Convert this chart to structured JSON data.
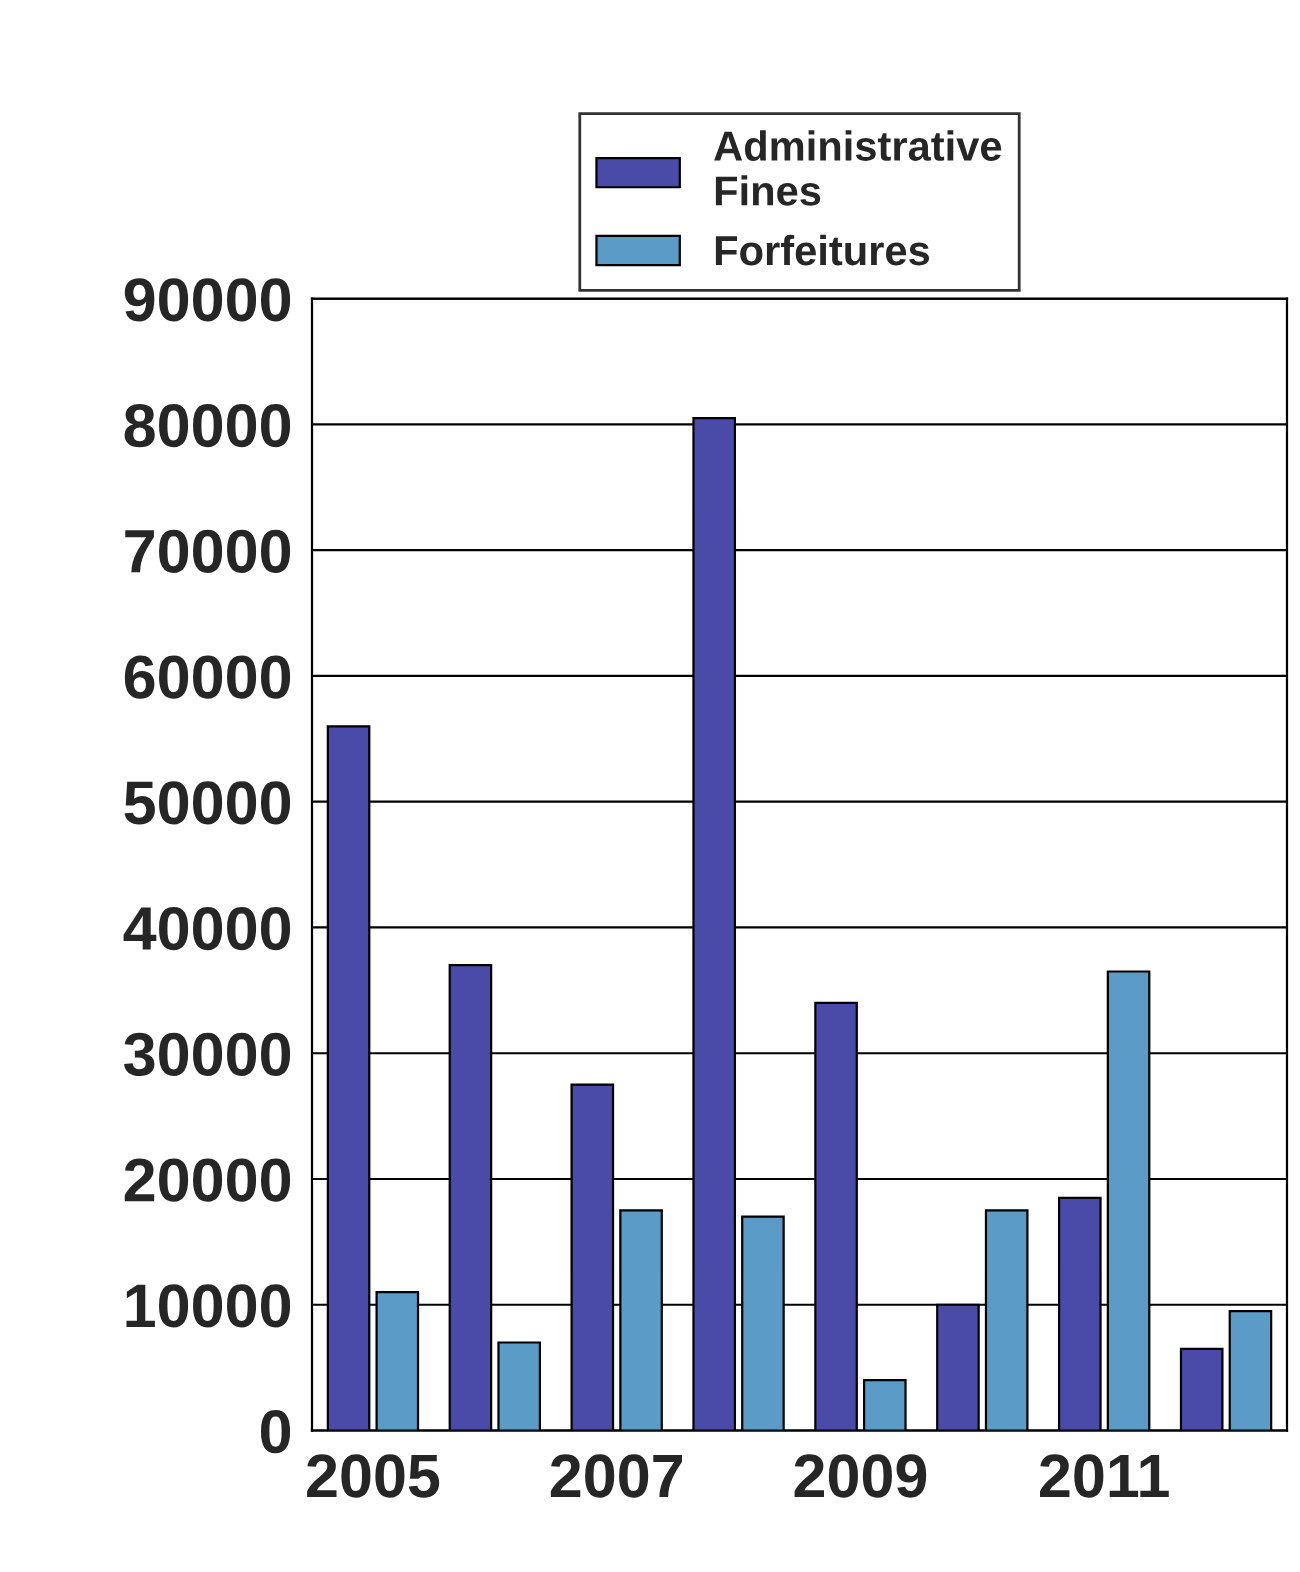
{
  "chart_data": {
    "type": "bar",
    "categories": [
      "2005",
      null,
      "2007",
      null,
      "2009",
      null,
      "2011",
      null
    ],
    "series": [
      {
        "name": "Administrative\nFines",
        "color": "#4a4aa8",
        "values": [
          56000,
          37000,
          27500,
          80500,
          34000,
          10000,
          18500,
          6500
        ]
      },
      {
        "name": "Forfeitures",
        "color": "#5b9bc8",
        "values": [
          11000,
          7000,
          17500,
          17000,
          4000,
          17500,
          36500,
          9500
        ]
      }
    ],
    "ylim": [
      0,
      90000
    ],
    "yticks": [
      0,
      10000,
      20000,
      30000,
      40000,
      50000,
      60000,
      70000,
      80000,
      90000
    ],
    "grid": "y",
    "legend": "top"
  }
}
